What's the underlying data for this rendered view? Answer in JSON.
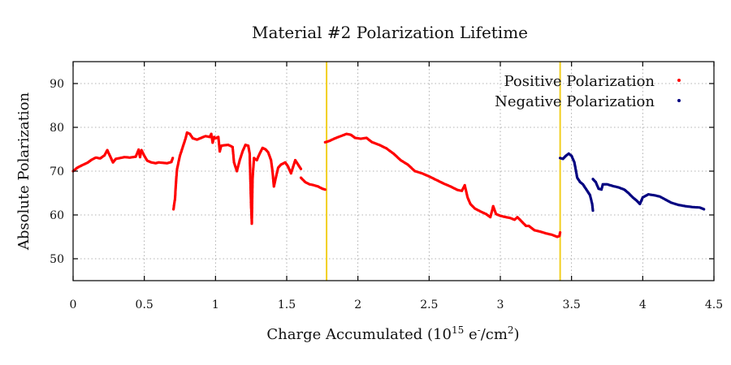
{
  "chart_data": {
    "type": "scatter",
    "title": "Material #2 Polarization Lifetime",
    "xlabel": {
      "prefix": "Charge Accumulated (10",
      "exp": "15",
      "mid": " e",
      "exp2": "-",
      "mid2": "/cm",
      "exp3": "2",
      "suffix": ")"
    },
    "ylabel": "Absolute Polarization",
    "xlim": [
      0,
      4.5
    ],
    "ylim": [
      45,
      95
    ],
    "xticks": [
      0,
      0.5,
      1,
      1.5,
      2,
      2.5,
      3,
      3.5,
      4,
      4.5
    ],
    "xtick_labels": [
      "0",
      "0.5",
      "1",
      "1.5",
      "2",
      "2.5",
      "3",
      "3.5",
      "4",
      "4.5"
    ],
    "yticks": [
      50,
      60,
      70,
      80,
      90
    ],
    "ytick_labels": [
      "50",
      "60",
      "70",
      "80",
      "90"
    ],
    "grid": true,
    "legend_position": "top-right",
    "vlines": [
      {
        "x": 1.78,
        "color": "#f2cf1f"
      },
      {
        "x": 3.42,
        "color": "#f2cf1f"
      }
    ],
    "series": [
      {
        "name": "Positive Polarization",
        "color": "#ff0000",
        "segments": [
          [
            [
              0.0,
              70.0
            ],
            [
              0.03,
              70.8
            ],
            [
              0.06,
              71.3
            ],
            [
              0.1,
              71.9
            ],
            [
              0.13,
              72.6
            ],
            [
              0.16,
              73.1
            ],
            [
              0.19,
              72.9
            ],
            [
              0.22,
              73.6
            ],
            [
              0.24,
              74.8
            ],
            [
              0.26,
              73.4
            ],
            [
              0.28,
              72.0
            ],
            [
              0.3,
              72.8
            ],
            [
              0.33,
              73.0
            ],
            [
              0.36,
              73.2
            ],
            [
              0.4,
              73.1
            ],
            [
              0.44,
              73.3
            ],
            [
              0.46,
              74.9
            ],
            [
              0.47,
              73.2
            ],
            [
              0.48,
              74.8
            ],
            [
              0.5,
              73.5
            ],
            [
              0.52,
              72.4
            ],
            [
              0.55,
              72.0
            ],
            [
              0.58,
              71.8
            ],
            [
              0.6,
              72.0
            ],
            [
              0.63,
              71.9
            ],
            [
              0.66,
              71.8
            ],
            [
              0.69,
              72.1
            ],
            [
              0.7,
              73.0
            ]
          ],
          [
            [
              0.705,
              61.3
            ],
            [
              0.71,
              62.5
            ],
            [
              0.715,
              63.5
            ],
            [
              0.72,
              66.0
            ],
            [
              0.725,
              68.5
            ],
            [
              0.73,
              70.5
            ],
            [
              0.74,
              72.0
            ],
            [
              0.75,
              73.5
            ],
            [
              0.77,
              75.5
            ],
            [
              0.79,
              77.5
            ],
            [
              0.8,
              78.8
            ],
            [
              0.82,
              78.5
            ],
            [
              0.84,
              77.5
            ],
            [
              0.87,
              77.2
            ],
            [
              0.9,
              77.6
            ],
            [
              0.93,
              78.0
            ],
            [
              0.96,
              77.8
            ],
            [
              0.97,
              78.5
            ],
            [
              0.98,
              76.5
            ],
            [
              0.99,
              77.8
            ],
            [
              1.0,
              77.5
            ],
            [
              1.02,
              77.8
            ],
            [
              1.03,
              74.5
            ],
            [
              1.04,
              75.8
            ],
            [
              1.06,
              75.9
            ],
            [
              1.09,
              76.0
            ],
            [
              1.12,
              75.5
            ],
            [
              1.13,
              72.0
            ],
            [
              1.15,
              70.0
            ],
            [
              1.17,
              72.5
            ],
            [
              1.19,
              74.5
            ],
            [
              1.21,
              76.0
            ],
            [
              1.23,
              75.8
            ],
            [
              1.24,
              74.0
            ],
            [
              1.245,
              68.0
            ],
            [
              1.25,
              62.0
            ],
            [
              1.255,
              58.0
            ],
            [
              1.26,
              68.0
            ],
            [
              1.27,
              73.0
            ],
            [
              1.29,
              72.5
            ],
            [
              1.31,
              74.0
            ],
            [
              1.33,
              75.3
            ],
            [
              1.35,
              75.0
            ],
            [
              1.37,
              74.3
            ],
            [
              1.39,
              72.5
            ],
            [
              1.4,
              70.0
            ],
            [
              1.41,
              66.5
            ],
            [
              1.42,
              68.0
            ],
            [
              1.44,
              70.8
            ],
            [
              1.46,
              71.5
            ],
            [
              1.49,
              72.0
            ],
            [
              1.51,
              71.0
            ],
            [
              1.53,
              69.5
            ],
            [
              1.55,
              71.5
            ],
            [
              1.56,
              72.5
            ],
            [
              1.58,
              71.5
            ],
            [
              1.6,
              70.5
            ]
          ],
          [
            [
              1.6,
              68.5
            ],
            [
              1.63,
              67.5
            ],
            [
              1.66,
              67.0
            ],
            [
              1.69,
              66.8
            ],
            [
              1.72,
              66.5
            ],
            [
              1.75,
              66.0
            ],
            [
              1.77,
              65.8
            ]
          ],
          [
            [
              1.77,
              76.6
            ],
            [
              1.8,
              76.9
            ],
            [
              1.84,
              77.5
            ],
            [
              1.88,
              78.0
            ],
            [
              1.92,
              78.5
            ],
            [
              1.95,
              78.3
            ],
            [
              1.98,
              77.6
            ],
            [
              2.02,
              77.4
            ],
            [
              2.06,
              77.6
            ],
            [
              2.1,
              76.6
            ],
            [
              2.15,
              76.0
            ],
            [
              2.2,
              75.2
            ],
            [
              2.25,
              74.0
            ],
            [
              2.3,
              72.5
            ],
            [
              2.35,
              71.5
            ],
            [
              2.4,
              70.0
            ],
            [
              2.45,
              69.5
            ],
            [
              2.5,
              68.8
            ],
            [
              2.55,
              68.0
            ],
            [
              2.6,
              67.2
            ],
            [
              2.65,
              66.5
            ],
            [
              2.7,
              65.7
            ],
            [
              2.73,
              65.5
            ],
            [
              2.75,
              66.8
            ],
            [
              2.77,
              64.0
            ],
            [
              2.79,
              62.5
            ],
            [
              2.82,
              61.5
            ],
            [
              2.86,
              60.8
            ],
            [
              2.9,
              60.2
            ],
            [
              2.93,
              59.5
            ],
            [
              2.95,
              62.0
            ],
            [
              2.97,
              60.2
            ],
            [
              3.0,
              59.8
            ],
            [
              3.04,
              59.5
            ],
            [
              3.07,
              59.3
            ],
            [
              3.1,
              58.9
            ],
            [
              3.12,
              59.5
            ],
            [
              3.15,
              58.5
            ],
            [
              3.18,
              57.5
            ],
            [
              3.2,
              57.5
            ],
            [
              3.24,
              56.5
            ],
            [
              3.28,
              56.2
            ],
            [
              3.32,
              55.8
            ],
            [
              3.36,
              55.5
            ],
            [
              3.4,
              55.0
            ],
            [
              3.415,
              55.2
            ],
            [
              3.42,
              56.0
            ]
          ]
        ]
      },
      {
        "name": "Negative Polarization",
        "color": "#000080",
        "segments": [
          [
            [
              3.42,
              73.0
            ],
            [
              3.44,
              72.8
            ],
            [
              3.46,
              73.5
            ],
            [
              3.48,
              74.0
            ],
            [
              3.5,
              73.5
            ],
            [
              3.52,
              72.0
            ],
            [
              3.54,
              68.5
            ],
            [
              3.56,
              67.5
            ],
            [
              3.58,
              67.0
            ],
            [
              3.61,
              65.5
            ],
            [
              3.63,
              64.5
            ],
            [
              3.645,
              62.5
            ],
            [
              3.65,
              61.0
            ]
          ],
          [
            [
              3.65,
              68.2
            ],
            [
              3.67,
              67.5
            ],
            [
              3.69,
              66.0
            ],
            [
              3.71,
              65.8
            ],
            [
              3.72,
              67.0
            ],
            [
              3.75,
              67.0
            ],
            [
              3.79,
              66.6
            ],
            [
              3.83,
              66.3
            ],
            [
              3.87,
              65.8
            ],
            [
              3.9,
              65.0
            ],
            [
              3.93,
              64.0
            ],
            [
              3.96,
              63.2
            ],
            [
              3.98,
              62.5
            ],
            [
              4.0,
              64.0
            ],
            [
              4.04,
              64.7
            ],
            [
              4.08,
              64.5
            ],
            [
              4.12,
              64.2
            ],
            [
              4.16,
              63.5
            ],
            [
              4.2,
              62.8
            ],
            [
              4.25,
              62.3
            ],
            [
              4.3,
              62.0
            ],
            [
              4.35,
              61.8
            ],
            [
              4.4,
              61.7
            ],
            [
              4.43,
              61.3
            ]
          ]
        ]
      }
    ]
  }
}
